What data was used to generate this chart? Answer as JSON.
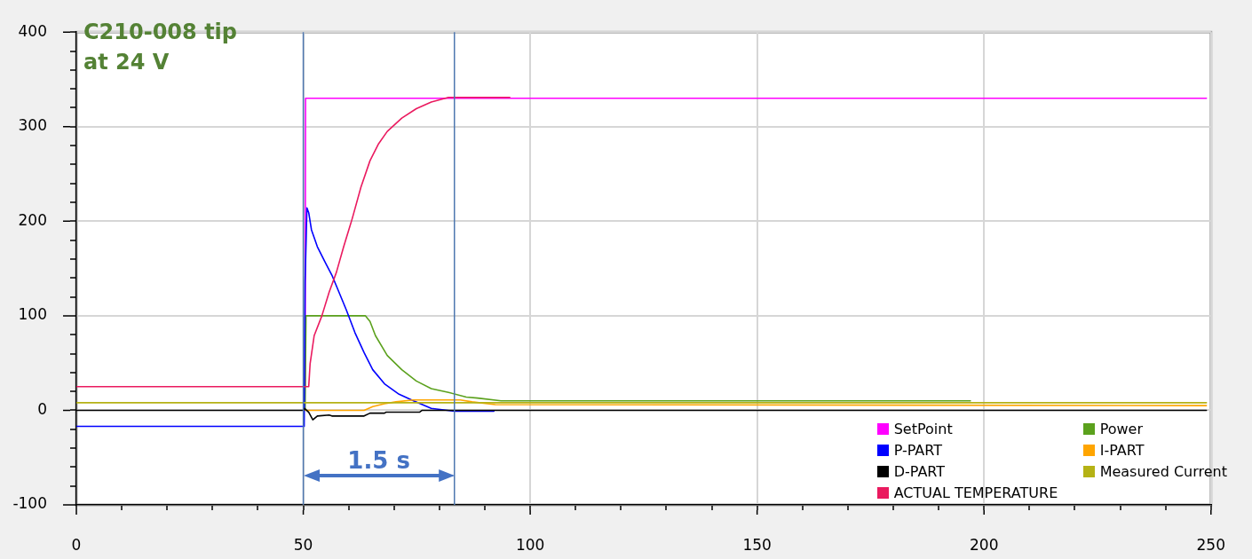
{
  "chart_data": {
    "type": "line",
    "title": "C210-008 tip",
    "subtitle": "at 24 V",
    "xlim": [
      0,
      250
    ],
    "ylim": [
      -100,
      400
    ],
    "xticks": [
      0,
      {
        "value": 10,
        "label": null
      },
      {
        "value": 20,
        "label": null
      },
      {
        "value": 30,
        "label": null
      },
      {
        "value": 40,
        "label": null
      },
      50,
      {
        "value": 60,
        "label": null
      },
      {
        "value": 70,
        "label": null
      },
      {
        "value": 80,
        "label": null
      },
      {
        "value": 90,
        "label": null
      },
      100,
      {
        "value": 110,
        "label": null
      },
      {
        "value": 120,
        "label": null
      },
      {
        "value": 130,
        "label": null
      },
      {
        "value": 140,
        "label": null
      },
      150,
      {
        "value": 160,
        "label": null
      },
      {
        "value": 170,
        "label": null
      },
      {
        "value": 180,
        "label": null
      },
      {
        "value": 190,
        "label": null
      },
      200,
      {
        "value": 210,
        "label": null
      },
      {
        "value": 220,
        "label": null
      },
      {
        "value": 230,
        "label": null
      },
      {
        "value": 240,
        "label": null
      },
      250
    ],
    "yticks": [
      -100,
      {
        "value": -80,
        "label": null
      },
      {
        "value": -60,
        "label": null
      },
      {
        "value": -40,
        "label": null
      },
      {
        "value": -20,
        "label": null
      },
      0,
      {
        "value": 20,
        "label": null
      },
      {
        "value": 40,
        "label": null
      },
      {
        "value": 60,
        "label": null
      },
      {
        "value": 80,
        "label": null
      },
      100,
      {
        "value": 120,
        "label": null
      },
      {
        "value": 140,
        "label": null
      },
      {
        "value": 160,
        "label": null
      },
      {
        "value": 180,
        "label": null
      },
      200,
      {
        "value": 220,
        "label": null
      },
      {
        "value": 240,
        "label": null
      },
      {
        "value": 260,
        "label": null
      },
      {
        "value": 280,
        "label": null
      },
      300,
      {
        "value": 320,
        "label": null
      },
      {
        "value": 340,
        "label": null
      },
      {
        "value": 360,
        "label": null
      },
      {
        "value": 380,
        "label": null
      },
      400
    ],
    "grid": true,
    "legend": "bottom right",
    "series": [
      {
        "name": "SetPoint",
        "color": "#ff00ff",
        "x": [
          50.4,
          50.5,
          249
        ],
        "values": [
          25,
          330,
          330
        ]
      },
      {
        "name": "Power",
        "color": "#5ba11d",
        "x": [
          50.4,
          50.6,
          63.7,
          64.7,
          65.9,
          68.5,
          71.7,
          74.9,
          78.2,
          82.0,
          85.9,
          88.4,
          93.6,
          197
        ],
        "values": [
          0,
          100,
          100,
          94,
          79,
          58,
          43,
          31,
          23,
          19,
          14,
          13,
          10,
          10
        ]
      },
      {
        "name": "P-PART",
        "color": "#0000ff",
        "x": [
          0,
          50.2,
          50.4,
          50.8,
          51.2,
          51.8,
          53.1,
          55.0,
          56.3,
          57.6,
          59.5,
          61.4,
          63.4,
          65.3,
          67.9,
          71.1,
          74.3,
          78.2,
          83.3,
          92.0
        ],
        "values": [
          -17,
          -17,
          136,
          214,
          209,
          191,
          173,
          155,
          143,
          128,
          106,
          82,
          61,
          43,
          28,
          17,
          10,
          2,
          -1,
          -1
        ]
      },
      {
        "name": "I-PART",
        "color": "#ffa500",
        "x": [
          50.5,
          63.4,
          65.3,
          67.9,
          70.4,
          74.3,
          84.6,
          87.2,
          92.3,
          249
        ],
        "values": [
          0,
          0,
          4,
          7,
          9,
          11,
          11,
          9,
          6,
          5
        ]
      },
      {
        "name": "D-PART",
        "color": "#000000",
        "x": [
          0,
          50.0,
          50.3,
          51.2,
          52.1,
          53.1,
          55.7,
          56.3,
          63.4,
          64.7,
          67.9,
          68.2,
          75.6,
          76.2,
          249
        ],
        "values": [
          0,
          0,
          2,
          -2,
          -10,
          -6,
          -5,
          -6,
          -6,
          -3,
          -3,
          -2,
          -2,
          0,
          0
        ]
      },
      {
        "name": "Measured Current",
        "color": "#b5b215",
        "x": [
          0,
          249
        ],
        "values": [
          8,
          8
        ]
      },
      {
        "name": "ACTUAL TEMPERATURE",
        "color": "#ea1a5f",
        "x": [
          0,
          51.2,
          51.5,
          52.4,
          54.1,
          55.7,
          57.3,
          58.9,
          60.8,
          62.7,
          64.7,
          66.6,
          68.5,
          71.7,
          74.9,
          78.2,
          82.0,
          95.5
        ],
        "values": [
          25,
          25,
          49,
          79,
          100,
          125,
          146,
          173,
          203,
          236,
          264,
          282,
          295,
          309,
          319,
          326,
          331,
          331
        ]
      }
    ],
    "ref_lines": [
      {
        "axis": "x",
        "value": 50.0,
        "color": "#4f78b0"
      },
      {
        "axis": "x",
        "value": 83.3,
        "color": "#4f78b0"
      }
    ],
    "annotations": [
      "1.5 s"
    ]
  }
}
